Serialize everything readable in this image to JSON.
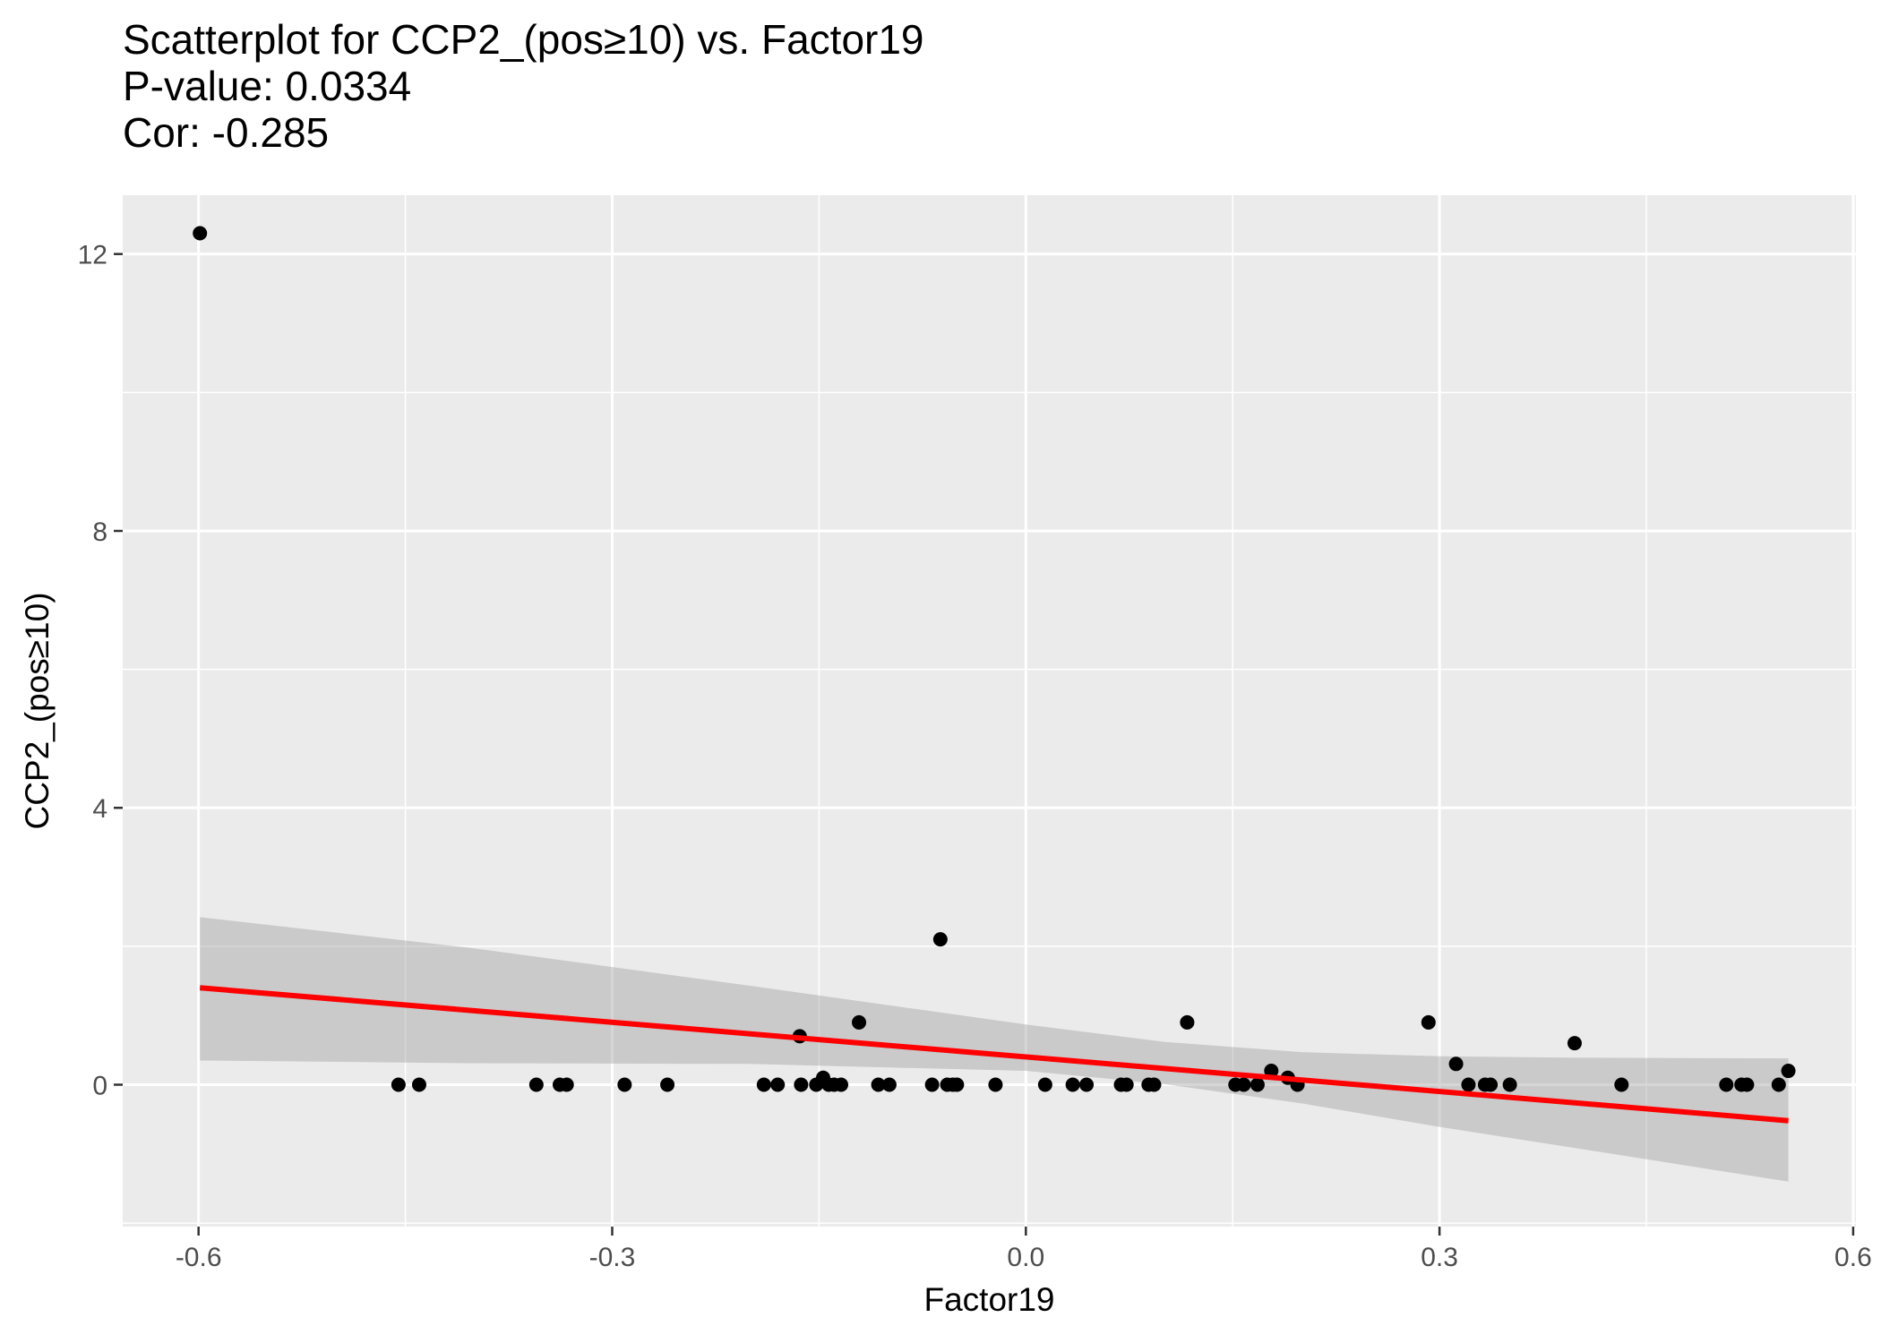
{
  "chart_data": {
    "type": "scatter",
    "title": "Scatterplot for CCP2_(pos≥10) vs. Factor19",
    "subtitle_lines": [
      "P-value: 0.0334",
      "Cor: -0.285"
    ],
    "xlabel": "Factor19",
    "ylabel": "CCP2_(pos≥10)",
    "xlim": [
      -0.655,
      0.602
    ],
    "ylim": [
      -2.05,
      12.85
    ],
    "x_ticks": [
      -0.6,
      -0.3,
      0.0,
      0.3,
      0.6
    ],
    "x_tick_labels": [
      "-0.6",
      "-0.3",
      "0.0",
      "0.3",
      "0.6"
    ],
    "y_ticks": [
      0,
      4,
      8,
      12
    ],
    "y_tick_labels": [
      "0",
      "4",
      "8",
      "12"
    ],
    "grid": true,
    "points": [
      {
        "x": -0.599,
        "y": 12.3
      },
      {
        "x": -0.455,
        "y": 0
      },
      {
        "x": -0.44,
        "y": 0
      },
      {
        "x": -0.355,
        "y": 0
      },
      {
        "x": -0.338,
        "y": 0
      },
      {
        "x": -0.333,
        "y": 0
      },
      {
        "x": -0.291,
        "y": 0
      },
      {
        "x": -0.26,
        "y": 0
      },
      {
        "x": -0.19,
        "y": 0
      },
      {
        "x": -0.18,
        "y": 0
      },
      {
        "x": -0.164,
        "y": 0.7
      },
      {
        "x": -0.163,
        "y": 0
      },
      {
        "x": -0.152,
        "y": 0
      },
      {
        "x": -0.147,
        "y": 0.1
      },
      {
        "x": -0.143,
        "y": 0
      },
      {
        "x": -0.139,
        "y": 0
      },
      {
        "x": -0.134,
        "y": 0
      },
      {
        "x": -0.121,
        "y": 0.9
      },
      {
        "x": -0.107,
        "y": 0
      },
      {
        "x": -0.099,
        "y": 0
      },
      {
        "x": -0.068,
        "y": 0
      },
      {
        "x": -0.062,
        "y": 2.1
      },
      {
        "x": -0.057,
        "y": 0
      },
      {
        "x": -0.053,
        "y": 0
      },
      {
        "x": -0.05,
        "y": 0
      },
      {
        "x": -0.022,
        "y": 0
      },
      {
        "x": 0.014,
        "y": 0
      },
      {
        "x": 0.034,
        "y": 0
      },
      {
        "x": 0.044,
        "y": 0
      },
      {
        "x": 0.069,
        "y": 0
      },
      {
        "x": 0.073,
        "y": 0
      },
      {
        "x": 0.089,
        "y": 0
      },
      {
        "x": 0.093,
        "y": 0
      },
      {
        "x": 0.117,
        "y": 0.9
      },
      {
        "x": 0.152,
        "y": 0
      },
      {
        "x": 0.158,
        "y": 0
      },
      {
        "x": 0.168,
        "y": 0
      },
      {
        "x": 0.178,
        "y": 0.2
      },
      {
        "x": 0.19,
        "y": 0.1
      },
      {
        "x": 0.197,
        "y": 0
      },
      {
        "x": 0.292,
        "y": 0.9
      },
      {
        "x": 0.312,
        "y": 0.3
      },
      {
        "x": 0.321,
        "y": 0
      },
      {
        "x": 0.333,
        "y": 0
      },
      {
        "x": 0.337,
        "y": 0
      },
      {
        "x": 0.351,
        "y": 0
      },
      {
        "x": 0.398,
        "y": 0.6
      },
      {
        "x": 0.432,
        "y": 0
      },
      {
        "x": 0.508,
        "y": 0
      },
      {
        "x": 0.519,
        "y": 0
      },
      {
        "x": 0.523,
        "y": 0
      },
      {
        "x": 0.546,
        "y": 0
      },
      {
        "x": 0.553,
        "y": 0.2
      }
    ],
    "regression_line": {
      "color": "#ff0000",
      "x": [
        -0.599,
        0.553
      ],
      "y": [
        1.4,
        -0.52
      ]
    },
    "confidence_band": {
      "color": "#999999",
      "x": [
        -0.599,
        -0.4,
        -0.2,
        0.0,
        0.1,
        0.2,
        0.3,
        0.4,
        0.553
      ],
      "upper": [
        2.42,
        1.97,
        1.43,
        0.87,
        0.62,
        0.47,
        0.41,
        0.39,
        0.38
      ],
      "lower": [
        0.35,
        0.31,
        0.3,
        0.2,
        0.01,
        -0.27,
        -0.61,
        -0.92,
        -1.4
      ]
    }
  }
}
